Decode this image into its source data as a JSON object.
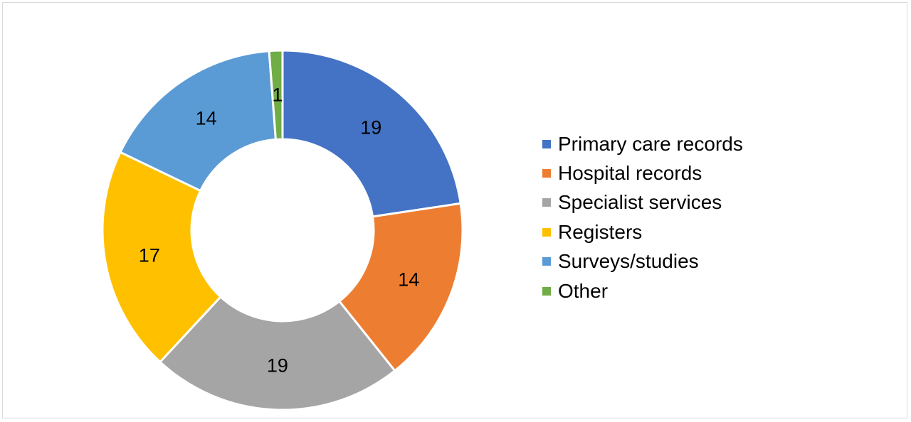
{
  "chart_data": {
    "type": "pie",
    "variant": "doughnut",
    "title": "",
    "categories": [
      "Primary care records",
      "Hospital records",
      "Specialist services",
      "Registers",
      "Surveys/studies",
      "Other"
    ],
    "values": [
      19,
      14,
      19,
      17,
      14,
      1
    ],
    "data_labels": [
      "19",
      "14",
      "19",
      "17",
      "14",
      "1"
    ],
    "colors": [
      "#4472C4",
      "#ED7D31",
      "#A5A5A5",
      "#FFC000",
      "#5B9BD5",
      "#70AD47"
    ],
    "legend_position": "right"
  }
}
